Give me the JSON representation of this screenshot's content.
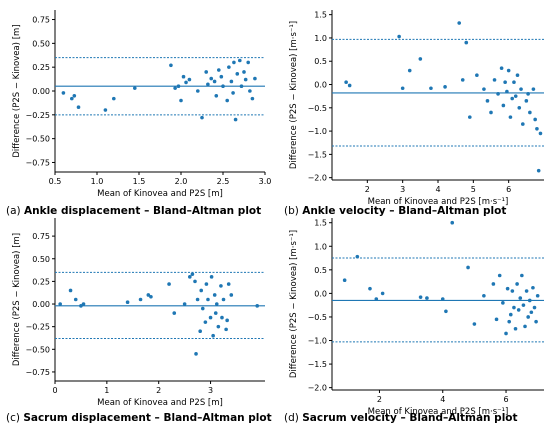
{
  "colors": {
    "points": "#1f77b4",
    "mean_line": "#1f77b4",
    "loa_line": "#1f77b4",
    "axes": "#000000"
  },
  "captions": [
    {
      "letter": "(a)",
      "title": "Ankle displacement – Bland–Altman plot"
    },
    {
      "letter": "(b)",
      "title": "Ankle velocity – Bland–Altman plot"
    },
    {
      "letter": "(c)",
      "title": "Sacrum displacement – Bland–Altman plot"
    },
    {
      "letter": "(d)",
      "title": "Sacrum velocity – Bland–Altman plot"
    }
  ],
  "chart_data": [
    {
      "type": "scatter",
      "xlabel": "Mean of Kinovea and P2S [m]",
      "ylabel": "Difference (P2S − Kinovea) [m]",
      "xlim": [
        0.5,
        3.0
      ],
      "ylim": [
        -0.85,
        0.85
      ],
      "xticks": [
        0.5,
        1.0,
        1.5,
        2.0,
        2.5,
        3.0
      ],
      "xtick_labels": [
        "0.5",
        "1.0",
        "1.5",
        "2.0",
        "2.5",
        "3.0"
      ],
      "yticks": [
        -0.75,
        -0.5,
        -0.25,
        0.0,
        0.25,
        0.5,
        0.75
      ],
      "ytick_labels": [
        "−0.75",
        "−0.50",
        "−0.25",
        "0.00",
        "0.25",
        "0.50",
        "0.75"
      ],
      "mean_diff": 0.05,
      "upper_loa": 0.35,
      "lower_loa": -0.25,
      "points": [
        [
          0.6,
          -0.02
        ],
        [
          0.7,
          -0.08
        ],
        [
          0.73,
          -0.05
        ],
        [
          0.78,
          -0.17
        ],
        [
          1.1,
          -0.2
        ],
        [
          1.2,
          -0.08
        ],
        [
          1.45,
          0.03
        ],
        [
          1.88,
          0.27
        ],
        [
          1.93,
          0.03
        ],
        [
          1.97,
          0.05
        ],
        [
          2.0,
          -0.1
        ],
        [
          2.03,
          0.15
        ],
        [
          2.06,
          0.09
        ],
        [
          2.1,
          0.12
        ],
        [
          2.2,
          0.0
        ],
        [
          2.25,
          -0.28
        ],
        [
          2.3,
          0.2
        ],
        [
          2.32,
          0.07
        ],
        [
          2.36,
          0.13
        ],
        [
          2.4,
          0.1
        ],
        [
          2.42,
          -0.05
        ],
        [
          2.45,
          0.22
        ],
        [
          2.48,
          0.15
        ],
        [
          2.5,
          0.05
        ],
        [
          2.55,
          -0.1
        ],
        [
          2.57,
          0.25
        ],
        [
          2.6,
          0.1
        ],
        [
          2.62,
          -0.02
        ],
        [
          2.63,
          0.3
        ],
        [
          2.65,
          -0.3
        ],
        [
          2.67,
          0.18
        ],
        [
          2.7,
          0.32
        ],
        [
          2.72,
          0.05
        ],
        [
          2.75,
          0.2
        ],
        [
          2.77,
          0.12
        ],
        [
          2.8,
          0.3
        ],
        [
          2.82,
          0.0
        ],
        [
          2.85,
          -0.08
        ],
        [
          2.88,
          0.13
        ]
      ]
    },
    {
      "type": "scatter",
      "xlabel": "Mean of Kinovea and P2S [m·s⁻¹]",
      "ylabel": "Difference (P2S − Kinovea) [m·s⁻¹]",
      "xlim": [
        1.0,
        7.0
      ],
      "ylim": [
        -2.05,
        1.6
      ],
      "xticks": [
        2,
        3,
        4,
        5,
        6
      ],
      "xtick_labels": [
        "2",
        "3",
        "4",
        "5",
        "6"
      ],
      "yticks": [
        -2.0,
        -1.5,
        -1.0,
        -0.5,
        0.0,
        0.5,
        1.0,
        1.5
      ],
      "ytick_labels": [
        "−2.0",
        "−1.5",
        "−1.0",
        "−0.5",
        "0.0",
        "0.5",
        "1.0",
        "1.5"
      ],
      "mean_diff": -0.18,
      "upper_loa": 0.97,
      "lower_loa": -1.32,
      "points": [
        [
          1.4,
          0.05
        ],
        [
          1.5,
          -0.02
        ],
        [
          2.9,
          1.03
        ],
        [
          3.0,
          -0.08
        ],
        [
          3.2,
          0.3
        ],
        [
          3.5,
          0.55
        ],
        [
          3.8,
          -0.08
        ],
        [
          4.2,
          -0.05
        ],
        [
          4.6,
          1.32
        ],
        [
          4.7,
          0.1
        ],
        [
          4.8,
          0.9
        ],
        [
          4.9,
          -0.7
        ],
        [
          5.1,
          0.2
        ],
        [
          5.3,
          -0.1
        ],
        [
          5.4,
          -0.35
        ],
        [
          5.5,
          -0.6
        ],
        [
          5.6,
          0.1
        ],
        [
          5.7,
          -0.2
        ],
        [
          5.8,
          0.35
        ],
        [
          5.85,
          -0.45
        ],
        [
          5.9,
          0.05
        ],
        [
          5.95,
          -0.15
        ],
        [
          6.0,
          0.3
        ],
        [
          6.05,
          -0.7
        ],
        [
          6.1,
          -0.3
        ],
        [
          6.15,
          0.05
        ],
        [
          6.2,
          -0.25
        ],
        [
          6.25,
          0.2
        ],
        [
          6.3,
          -0.5
        ],
        [
          6.35,
          -0.1
        ],
        [
          6.4,
          -0.85
        ],
        [
          6.5,
          -0.35
        ],
        [
          6.55,
          -0.2
        ],
        [
          6.6,
          -0.6
        ],
        [
          6.7,
          -0.1
        ],
        [
          6.75,
          -0.75
        ],
        [
          6.8,
          -0.95
        ],
        [
          6.85,
          -1.85
        ],
        [
          6.9,
          -1.05
        ]
      ]
    },
    {
      "type": "scatter",
      "xlabel": "Mean of Kinovea and P2S [m]",
      "ylabel": "Difference (P2S − Kinovea) [m]",
      "xlim": [
        0.0,
        4.05
      ],
      "ylim": [
        -0.85,
        0.95
      ],
      "xticks": [
        0,
        1,
        2,
        3
      ],
      "xtick_labels": [
        "0",
        "1",
        "2",
        "3"
      ],
      "yticks": [
        -0.75,
        -0.5,
        -0.25,
        0.0,
        0.25,
        0.5,
        0.75
      ],
      "ytick_labels": [
        "−0.75",
        "−0.50",
        "−0.25",
        "0.00",
        "0.25",
        "0.50",
        "0.75"
      ],
      "mean_diff": -0.02,
      "upper_loa": 0.35,
      "lower_loa": -0.38,
      "points": [
        [
          0.1,
          0.0
        ],
        [
          0.3,
          0.15
        ],
        [
          0.4,
          0.05
        ],
        [
          0.5,
          -0.02
        ],
        [
          0.55,
          0.0
        ],
        [
          1.4,
          0.02
        ],
        [
          1.65,
          0.05
        ],
        [
          1.8,
          0.1
        ],
        [
          1.85,
          0.08
        ],
        [
          2.2,
          0.22
        ],
        [
          2.3,
          -0.1
        ],
        [
          2.5,
          0.0
        ],
        [
          2.6,
          0.3
        ],
        [
          2.65,
          0.33
        ],
        [
          2.7,
          0.25
        ],
        [
          2.72,
          -0.55
        ],
        [
          2.75,
          0.05
        ],
        [
          2.8,
          -0.3
        ],
        [
          2.82,
          0.15
        ],
        [
          2.85,
          -0.05
        ],
        [
          2.9,
          -0.2
        ],
        [
          2.92,
          0.22
        ],
        [
          2.95,
          0.05
        ],
        [
          3.0,
          -0.15
        ],
        [
          3.02,
          0.3
        ],
        [
          3.05,
          -0.35
        ],
        [
          3.08,
          0.1
        ],
        [
          3.1,
          -0.1
        ],
        [
          3.12,
          0.0
        ],
        [
          3.15,
          -0.25
        ],
        [
          3.2,
          0.2
        ],
        [
          3.22,
          -0.15
        ],
        [
          3.25,
          0.05
        ],
        [
          3.3,
          -0.28
        ],
        [
          3.32,
          -0.18
        ],
        [
          3.35,
          0.22
        ],
        [
          3.4,
          0.1
        ],
        [
          3.9,
          -0.02
        ]
      ]
    },
    {
      "type": "scatter",
      "xlabel": "Mean of Kinovea and P2S [m·s⁻¹]",
      "ylabel": "Difference (P2S − Kinovea) [m·s⁻¹]",
      "xlim": [
        0.5,
        7.2
      ],
      "ylim": [
        -2.05,
        1.6
      ],
      "xticks": [
        2,
        4,
        6
      ],
      "xtick_labels": [
        "2",
        "4",
        "6"
      ],
      "yticks": [
        -2.0,
        -1.5,
        -1.0,
        -0.5,
        0.0,
        0.5,
        1.0,
        1.5
      ],
      "ytick_labels": [
        "−2.0",
        "−1.5",
        "−1.0",
        "−0.5",
        "0.0",
        "0.5",
        "1.0",
        "1.5"
      ],
      "mean_diff": -0.15,
      "upper_loa": 0.75,
      "lower_loa": -1.03,
      "points": [
        [
          0.9,
          0.28
        ],
        [
          1.3,
          0.78
        ],
        [
          1.7,
          0.1
        ],
        [
          1.9,
          -0.12
        ],
        [
          2.1,
          0.0
        ],
        [
          3.3,
          -0.08
        ],
        [
          3.5,
          -0.1
        ],
        [
          4.0,
          -0.12
        ],
        [
          4.1,
          -0.38
        ],
        [
          4.3,
          1.5
        ],
        [
          4.8,
          0.55
        ],
        [
          5.0,
          -0.65
        ],
        [
          5.3,
          -0.05
        ],
        [
          5.6,
          0.2
        ],
        [
          5.7,
          -0.55
        ],
        [
          5.8,
          0.38
        ],
        [
          5.9,
          -0.2
        ],
        [
          6.0,
          -0.85
        ],
        [
          6.05,
          0.1
        ],
        [
          6.1,
          -0.6
        ],
        [
          6.15,
          -0.45
        ],
        [
          6.2,
          0.05
        ],
        [
          6.25,
          -0.3
        ],
        [
          6.3,
          -0.75
        ],
        [
          6.35,
          0.2
        ],
        [
          6.4,
          -0.35
        ],
        [
          6.45,
          -0.1
        ],
        [
          6.5,
          0.38
        ],
        [
          6.55,
          -0.25
        ],
        [
          6.6,
          -0.7
        ],
        [
          6.65,
          0.05
        ],
        [
          6.7,
          -0.5
        ],
        [
          6.75,
          -0.15
        ],
        [
          6.8,
          -0.4
        ],
        [
          6.85,
          0.12
        ],
        [
          6.9,
          -0.3
        ],
        [
          6.95,
          -0.6
        ],
        [
          7.0,
          -0.05
        ]
      ]
    }
  ]
}
